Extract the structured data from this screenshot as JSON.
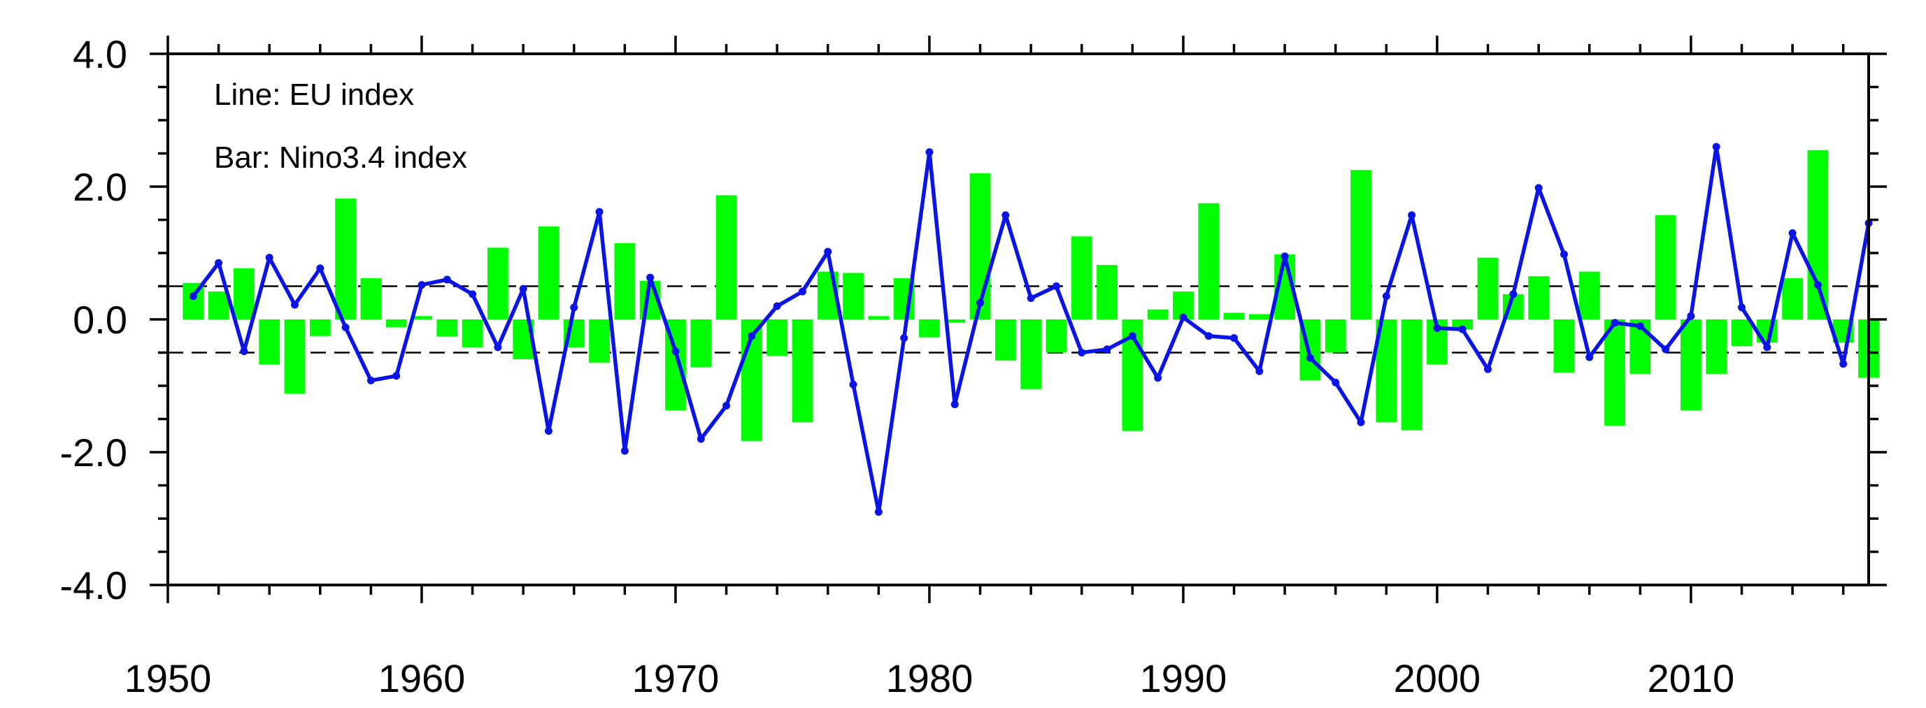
{
  "chart_data": {
    "type": "bar+line",
    "annotations": [
      "Line: EU index",
      "Bar: Nino3.4 index"
    ],
    "x_ticks": [
      "1950",
      "1960",
      "1970",
      "1980",
      "1990",
      "2000",
      "2010"
    ],
    "x_tick_values": [
      1950,
      1960,
      1970,
      1980,
      1990,
      2000,
      2010
    ],
    "y_ticks": [
      "4.0",
      "2.0",
      "0.0",
      "-2.0",
      "-4.0"
    ],
    "y_tick_values": [
      4,
      2,
      0,
      -2,
      -4
    ],
    "xlim": [
      1950,
      2017
    ],
    "ylim": [
      -4,
      4
    ],
    "reference_lines": [
      0.5,
      -0.5
    ],
    "x": [
      1951,
      1952,
      1953,
      1954,
      1955,
      1956,
      1957,
      1958,
      1959,
      1960,
      1961,
      1962,
      1963,
      1964,
      1965,
      1966,
      1967,
      1968,
      1969,
      1970,
      1971,
      1972,
      1973,
      1974,
      1975,
      1976,
      1977,
      1978,
      1979,
      1980,
      1981,
      1982,
      1983,
      1984,
      1985,
      1986,
      1987,
      1988,
      1989,
      1990,
      1991,
      1992,
      1993,
      1994,
      1995,
      1996,
      1997,
      1998,
      1999,
      2000,
      2001,
      2002,
      2003,
      2004,
      2005,
      2006,
      2007,
      2008,
      2009,
      2010,
      2011,
      2012,
      2013,
      2014,
      2015,
      2016,
      2017
    ],
    "series": [
      {
        "name": "Nino3.4 index",
        "kind": "bar",
        "color": "#00ff00",
        "values": [
          0.55,
          0.42,
          0.77,
          -0.68,
          -1.12,
          -0.25,
          1.82,
          0.62,
          -0.12,
          0.05,
          -0.26,
          -0.42,
          1.08,
          -0.6,
          1.4,
          -0.42,
          -0.65,
          1.15,
          0.58,
          -1.37,
          -0.72,
          1.87,
          -1.83,
          -0.55,
          -1.55,
          0.72,
          0.7,
          0.05,
          0.62,
          -0.27,
          -0.05,
          2.2,
          -0.62,
          -1.05,
          -0.5,
          1.25,
          0.82,
          -1.68,
          0.15,
          0.42,
          1.75,
          0.1,
          0.08,
          0.98,
          -0.92,
          -0.5,
          2.25,
          -1.55,
          -1.67,
          -0.68,
          -0.15,
          0.93,
          0.38,
          0.65,
          -0.8,
          0.72,
          -1.6,
          -0.82,
          1.57,
          -1.37,
          -0.82,
          -0.4,
          -0.35,
          0.62,
          2.55,
          -0.35,
          -0.88
        ]
      },
      {
        "name": "EU index",
        "kind": "line",
        "color": "#0a14e6",
        "values": [
          0.35,
          0.85,
          -0.48,
          0.93,
          0.22,
          0.77,
          -0.12,
          -0.92,
          -0.85,
          0.52,
          0.6,
          0.38,
          -0.42,
          0.46,
          -1.68,
          0.18,
          1.62,
          -1.98,
          0.63,
          -0.48,
          -1.8,
          -1.3,
          -0.25,
          0.2,
          0.42,
          1.02,
          -0.98,
          -2.9,
          -0.28,
          2.52,
          -1.28,
          0.25,
          1.57,
          0.32,
          0.5,
          -0.5,
          -0.45,
          -0.25,
          -0.88,
          0.03,
          -0.25,
          -0.28,
          -0.78,
          0.95,
          -0.58,
          -0.95,
          -1.55,
          0.35,
          1.57,
          -0.13,
          -0.15,
          -0.75,
          0.38,
          1.98,
          0.98,
          -0.57,
          -0.05,
          -0.1,
          -0.45,
          0.05,
          2.6,
          0.18,
          -0.42,
          1.3,
          0.52,
          -0.67,
          1.45
        ]
      }
    ]
  }
}
